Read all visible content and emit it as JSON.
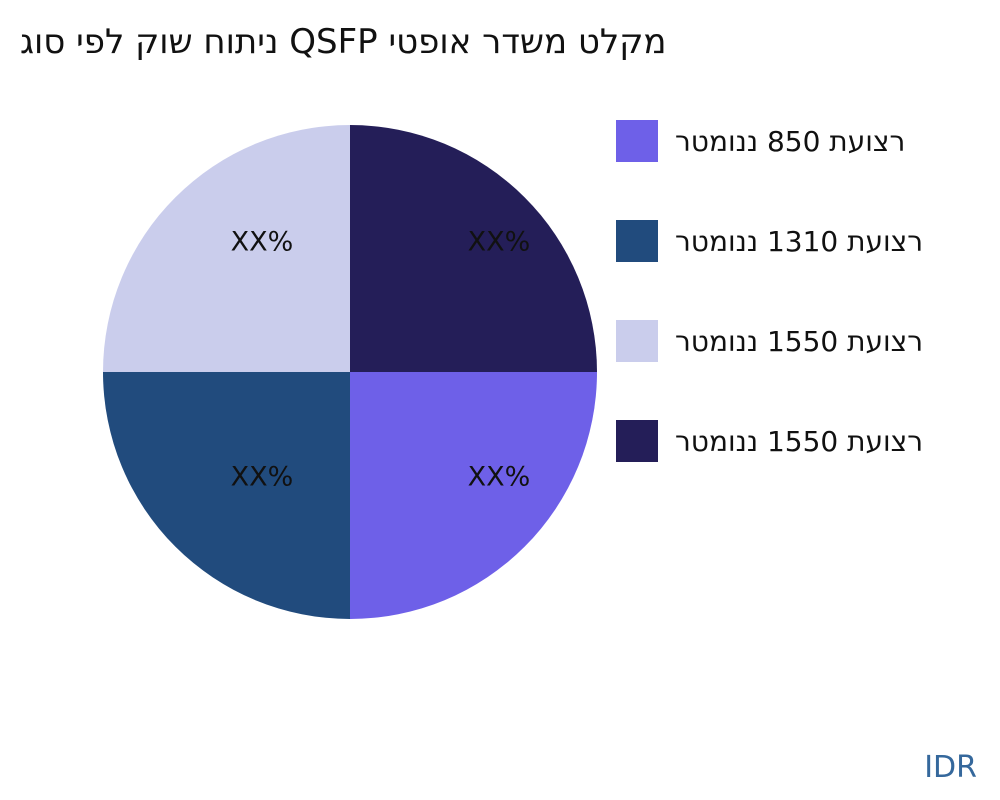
{
  "title": "מקלט משדר אופטי QSFP ניתוח שוק לפי סוג",
  "watermark": "IDR",
  "colors": {
    "text": "#111111",
    "watermark_blue": "#35689C",
    "slice_purple": "#6E60E8",
    "slice_teal": "#214B7D",
    "slice_lavender": "#CACDEC",
    "slice_navy": "#241E58"
  },
  "chart_data": {
    "type": "pie",
    "title": "מקלט משדר אופטי QSFP ניתוח שוק לפי סוג",
    "legend_position": "right",
    "start_angle_deg": 0,
    "direction": "clockwise",
    "slices": [
      {
        "label": "רצועת 850 ננומטר",
        "value": 25,
        "display_pct": "XX%",
        "color": "#6E60E8",
        "position": "bottom-right"
      },
      {
        "label": "רצועת 1310 ננומטר",
        "value": 25,
        "display_pct": "XX%",
        "color": "#214B7D",
        "position": "bottom-left"
      },
      {
        "label": "רצועת 1550 ננומטר",
        "value": 25,
        "display_pct": "XX%",
        "color": "#CACDEC",
        "position": "top-left"
      },
      {
        "label": "רצועת 1550 ננומטר",
        "value": 25,
        "display_pct": "XX%",
        "color": "#241E58",
        "position": "top-right"
      }
    ]
  }
}
